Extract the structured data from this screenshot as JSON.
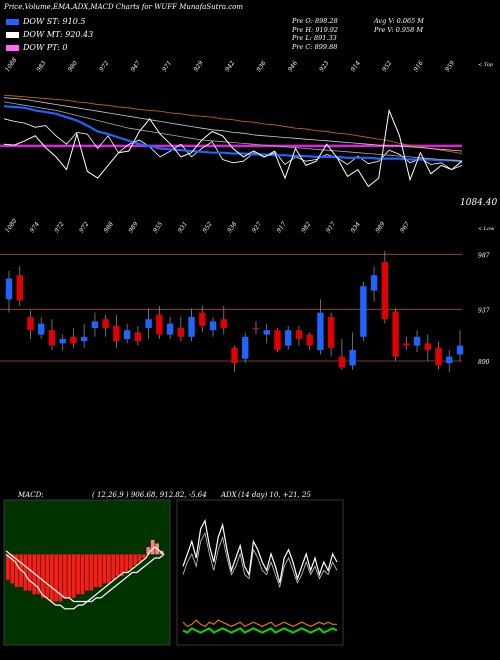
{
  "header": {
    "title": "Price,Volume,EMA,ADX,MACD Charts for WUFF MunafaSutra.com"
  },
  "legend": [
    {
      "label": "DOW ST: 910.5",
      "color": "#1e64ff"
    },
    {
      "label": "DOW MT: 920.43",
      "color": "#ffffff"
    },
    {
      "label": "DOW PT: 0",
      "color": "#ff66ff"
    }
  ],
  "ohlc": {
    "open": "Pre   O: 898.28",
    "high": "Pre   H: 919.92",
    "low": "Pre   L: 891.33",
    "close": "Pre   C: 899.88",
    "avg_volume": "Avg V: 0.065 M",
    "pre_volume": "Pre   V: 0.958 M"
  },
  "chart_data": [
    {
      "type": "line",
      "panel": "ema",
      "x_tick_labels": [
        "1088",
        "983",
        "980",
        "972",
        "947",
        "971",
        "929",
        "942",
        "936",
        "946",
        "923",
        "914",
        "952",
        "916",
        "959"
      ],
      "corner_label": "< Top",
      "price_label": "1084.40",
      "series": [
        {
          "values": [
            1030,
            1027,
            1025,
            1020,
            1022,
            1010,
            1000,
            1014,
            1012,
            995,
            1010,
            990,
            1000,
            1005,
            997,
            985,
            992,
            1000,
            985,
            995,
            1003,
            982,
            978,
            980,
            990,
            985,
            992,
            976,
            985,
            980,
            982,
            988,
            984,
            976,
            986,
            977,
            980,
            993,
            988,
            978,
            983,
            976,
            978,
            970,
            975
          ]
        },
        {
          "values": [
            1058,
            1057,
            1056,
            1055,
            1054,
            1053,
            1052,
            1050,
            1049,
            1047,
            1046,
            1044,
            1043,
            1041,
            1040,
            1039,
            1037,
            1036,
            1034,
            1033,
            1032,
            1030,
            1029,
            1027,
            1026,
            1024,
            1023,
            1021,
            1019,
            1018,
            1016,
            1015,
            1013,
            1012,
            1010,
            1008,
            1006,
            1004,
            1001,
            999,
            997,
            995,
            993,
            991,
            989
          ]
        },
        {
          "values": [
            1055,
            1054,
            1053,
            1051,
            1049,
            1047,
            1045,
            1043,
            1041,
            1039,
            1037,
            1035,
            1033,
            1031,
            1029,
            1027,
            1025,
            1023,
            1021,
            1019,
            1017,
            1016,
            1014,
            1013,
            1011,
            1010,
            1009,
            1008,
            1007,
            1006,
            1005,
            1004,
            1003,
            1002,
            1001,
            1000,
            999,
            998,
            998,
            997,
            996,
            995,
            994,
            993,
            992
          ]
        },
        {
          "values": [
            1045,
            1044,
            1043,
            1040,
            1038,
            1036,
            1032,
            1028,
            1022,
            1015,
            1012,
            1008,
            1004,
            1000,
            998,
            995,
            994,
            993,
            992,
            991,
            990,
            990,
            989,
            989,
            988,
            988,
            987,
            987,
            986,
            986,
            985,
            985,
            985,
            984,
            984,
            984,
            983,
            983,
            983,
            982,
            982,
            982,
            981,
            981,
            980
          ]
        },
        {
          "values": [
            1050,
            1048,
            1046,
            1044,
            1042,
            1040,
            1037,
            1034,
            1031,
            1028,
            1025,
            1022,
            1019,
            1017,
            1015,
            1013,
            1011,
            1009,
            1007,
            1005,
            1004,
            1003,
            1002,
            1001,
            1000,
            999,
            998,
            997,
            996,
            995,
            994,
            993,
            992,
            991,
            990,
            989,
            988,
            987,
            986,
            985,
            984,
            983,
            982,
            981,
            980
          ]
        },
        {
          "values": [
            1000,
            999,
            1004,
            1010,
            996,
            985,
            970,
            1012,
            968,
            960,
            975,
            990,
            992,
            1015,
            1030,
            1012,
            1000,
            985,
            990,
            1005,
            1015,
            1010,
            995,
            985,
            992,
            985,
            990,
            960,
            995,
            975,
            980,
            1000,
            984,
            962,
            970,
            950,
            960,
            1040,
            1010,
            958,
            990,
            965,
            975,
            970,
            980
          ]
        }
      ],
      "hline": 998
    },
    {
      "type": "candlestick",
      "panel": "price",
      "x_tick_labels": [
        "1080",
        "974",
        "972",
        "972",
        "988",
        "989",
        "955",
        "931",
        "952",
        "938",
        "927",
        "917",
        "982",
        "917",
        "934",
        "989",
        "967"
      ],
      "corner_label": "< Low",
      "y_tick_labels": [
        "987",
        "937",
        "890"
      ],
      "hlines": [
        987,
        937,
        890
      ],
      "ylim": [
        880,
        1000
      ],
      "candles": [
        {
          "o": 946,
          "c": 965,
          "h": 972,
          "l": 934,
          "up": true
        },
        {
          "o": 968,
          "c": 945,
          "h": 976,
          "l": 940,
          "up": false
        },
        {
          "o": 930,
          "c": 918,
          "h": 936,
          "l": 910,
          "up": false
        },
        {
          "o": 914,
          "c": 924,
          "h": 930,
          "l": 910,
          "up": true
        },
        {
          "o": 918,
          "c": 904,
          "h": 928,
          "l": 900,
          "up": false
        },
        {
          "o": 906,
          "c": 910,
          "h": 914,
          "l": 900,
          "up": true
        },
        {
          "o": 912,
          "c": 906,
          "h": 920,
          "l": 902,
          "up": false
        },
        {
          "o": 908,
          "c": 912,
          "h": 924,
          "l": 902,
          "up": true
        },
        {
          "o": 920,
          "c": 926,
          "h": 934,
          "l": 912,
          "up": true
        },
        {
          "o": 928,
          "c": 920,
          "h": 932,
          "l": 912,
          "up": false
        },
        {
          "o": 922,
          "c": 908,
          "h": 932,
          "l": 902,
          "up": false
        },
        {
          "o": 910,
          "c": 918,
          "h": 924,
          "l": 906,
          "up": true
        },
        {
          "o": 916,
          "c": 908,
          "h": 922,
          "l": 904,
          "up": false
        },
        {
          "o": 920,
          "c": 928,
          "h": 938,
          "l": 910,
          "up": true
        },
        {
          "o": 932,
          "c": 914,
          "h": 940,
          "l": 910,
          "up": false
        },
        {
          "o": 914,
          "c": 924,
          "h": 930,
          "l": 910,
          "up": true
        },
        {
          "o": 920,
          "c": 912,
          "h": 930,
          "l": 908,
          "up": false
        },
        {
          "o": 912,
          "c": 930,
          "h": 938,
          "l": 908,
          "up": true
        },
        {
          "o": 934,
          "c": 922,
          "h": 940,
          "l": 916,
          "up": false
        },
        {
          "o": 918,
          "c": 926,
          "h": 930,
          "l": 912,
          "up": true
        },
        {
          "o": 928,
          "c": 920,
          "h": 940,
          "l": 914,
          "up": false
        },
        {
          "o": 902,
          "c": 888,
          "h": 904,
          "l": 880,
          "up": false
        },
        {
          "o": 892,
          "c": 912,
          "h": 916,
          "l": 888,
          "up": true
        },
        {
          "o": 920,
          "c": 920,
          "h": 926,
          "l": 914,
          "up": false
        },
        {
          "o": 914,
          "c": 918,
          "h": 924,
          "l": 906,
          "up": true
        },
        {
          "o": 918,
          "c": 900,
          "h": 920,
          "l": 898,
          "up": false
        },
        {
          "o": 904,
          "c": 918,
          "h": 922,
          "l": 900,
          "up": true
        },
        {
          "o": 918,
          "c": 910,
          "h": 922,
          "l": 904,
          "up": false
        },
        {
          "o": 914,
          "c": 904,
          "h": 916,
          "l": 900,
          "up": false
        },
        {
          "o": 900,
          "c": 934,
          "h": 946,
          "l": 896,
          "up": true
        },
        {
          "o": 930,
          "c": 902,
          "h": 934,
          "l": 894,
          "up": false
        },
        {
          "o": 894,
          "c": 884,
          "h": 910,
          "l": 882,
          "up": false
        },
        {
          "o": 886,
          "c": 900,
          "h": 916,
          "l": 882,
          "up": true
        },
        {
          "o": 912,
          "c": 958,
          "h": 962,
          "l": 908,
          "up": true
        },
        {
          "o": 954,
          "c": 968,
          "h": 976,
          "l": 944,
          "up": true
        },
        {
          "o": 980,
          "c": 928,
          "h": 990,
          "l": 924,
          "up": false
        },
        {
          "o": 935,
          "c": 894,
          "h": 938,
          "l": 890,
          "up": false
        },
        {
          "o": 904,
          "c": 906,
          "h": 912,
          "l": 900,
          "up": false
        },
        {
          "o": 904,
          "c": 912,
          "h": 918,
          "l": 898,
          "up": true
        },
        {
          "o": 906,
          "c": 900,
          "h": 914,
          "l": 890,
          "up": false
        },
        {
          "o": 902,
          "c": 886,
          "h": 908,
          "l": 882,
          "up": false
        },
        {
          "o": 888,
          "c": 894,
          "h": 900,
          "l": 880,
          "up": true
        },
        {
          "o": 896,
          "c": 904,
          "h": 918,
          "l": 890,
          "up": true
        }
      ]
    },
    {
      "type": "bar",
      "panel": "macd",
      "title": "MACD:",
      "params": "( 12,26,9 ) 906.68, 912.82, -5.64",
      "bars": [
        -7,
        -8,
        -9,
        -9,
        -10,
        -10,
        -11,
        -11,
        -12,
        -12,
        -13,
        -13,
        -13,
        -12,
        -12,
        -12,
        -11,
        -11,
        -10,
        -10,
        -9,
        -9,
        -8,
        -8,
        -7,
        -6,
        -6,
        -5,
        -4,
        -3,
        -2,
        -1,
        2,
        4,
        3,
        1
      ],
      "series": [
        {
          "name": "macd",
          "values": [
            0,
            -1,
            -2,
            -4,
            -5,
            -7,
            -8,
            -9,
            -11,
            -12,
            -13,
            -14,
            -14,
            -15,
            -15,
            -15,
            -14,
            -14,
            -13,
            -12,
            -11,
            -10,
            -9,
            -8,
            -7,
            -6,
            -5,
            -5,
            -4,
            -3,
            -2,
            -1,
            1,
            2,
            1,
            0
          ]
        },
        {
          "name": "signal",
          "values": [
            1,
            0,
            -1,
            -2,
            -3,
            -4,
            -5,
            -6,
            -7,
            -8,
            -9,
            -10,
            -11,
            -12,
            -12,
            -13,
            -13,
            -13,
            -13,
            -13,
            -12,
            -12,
            -11,
            -10,
            -9,
            -8,
            -7,
            -6,
            -5,
            -5,
            -4,
            -3,
            -2,
            -1,
            -1,
            0
          ]
        }
      ]
    },
    {
      "type": "line",
      "panel": "adx",
      "title": "ADX",
      "params": "(14  day) 10,  +21,  25",
      "series": [
        {
          "name": "+DI",
          "values": [
            38,
            44,
            50,
            42,
            56,
            60,
            48,
            40,
            52,
            58,
            46,
            36,
            42,
            48,
            38,
            34,
            50,
            46,
            40,
            36,
            44,
            38,
            30,
            42,
            46,
            40,
            32,
            38,
            44,
            36,
            42,
            34,
            40,
            36,
            44,
            40
          ]
        },
        {
          "name": "-DI",
          "values": [
            34,
            40,
            44,
            38,
            50,
            54,
            44,
            36,
            46,
            52,
            42,
            34,
            38,
            44,
            34,
            32,
            46,
            42,
            36,
            34,
            40,
            34,
            28,
            38,
            42,
            36,
            30,
            34,
            40,
            34,
            38,
            32,
            36,
            34,
            40,
            36
          ]
        },
        {
          "name": "ADX",
          "values": [
            11,
            9,
            10,
            12,
            10,
            9,
            11,
            10,
            12,
            11,
            10,
            9,
            10,
            11,
            9,
            10,
            11,
            10,
            9,
            10,
            11,
            9,
            10,
            11,
            10,
            9,
            10,
            11,
            10,
            9,
            10,
            11,
            10,
            11,
            10,
            10
          ]
        },
        {
          "name": "ADX2",
          "values": [
            7,
            6,
            8,
            7,
            6,
            7,
            8,
            6,
            7,
            8,
            7,
            6,
            7,
            8,
            6,
            7,
            8,
            7,
            6,
            7,
            8,
            6,
            7,
            8,
            7,
            6,
            7,
            8,
            7,
            6,
            7,
            8,
            6,
            7,
            8,
            7
          ]
        }
      ]
    }
  ],
  "colors": {
    "up": "#1e64ff",
    "down": "#e00000",
    "pt_line": "#dd22dd",
    "ema_orange": "#c0620a",
    "ema_blue": "#1e64ff",
    "macd_bar": "#ff1a1a",
    "adx_orange": "#e07800",
    "adx_green": "#00dd00",
    "grid": "#a0522d"
  }
}
